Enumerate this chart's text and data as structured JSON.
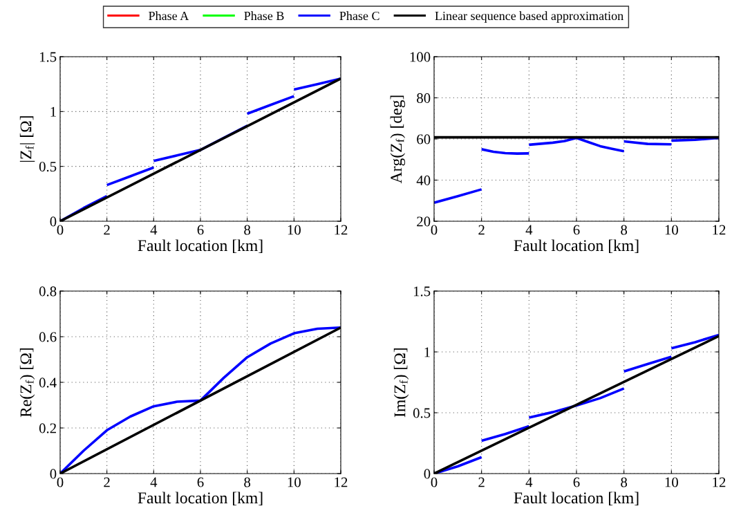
{
  "chart_data": [
    {
      "type": "line",
      "xlabel": "Fault location [km]",
      "ylabel": "|Z$_{f}$| [Ω]",
      "xlim": [
        0,
        12
      ],
      "xticks": [
        0,
        2,
        4,
        6,
        8,
        10,
        12
      ],
      "ylim": [
        0,
        1.5
      ],
      "yticks": [
        0,
        0.5,
        1,
        1.5
      ],
      "grid": true,
      "legend": "top",
      "line_style": "solid",
      "marker": "none",
      "series": [
        {
          "name": "Phase A",
          "color": "#ff0000"
        },
        {
          "name": "Phase B",
          "color": "#00ff00"
        },
        {
          "name": "Phase C",
          "color": "#0000ff",
          "x": [
            0,
            1,
            2
          ],
          "values": [
            0,
            0.12,
            0.23
          ]
        },
        {
          "color": "#0000ff",
          "x": [
            2,
            3,
            4
          ],
          "values": [
            0.33,
            0.41,
            0.49
          ]
        },
        {
          "color": "#0000ff",
          "x": [
            4,
            5,
            6,
            7,
            8
          ],
          "values": [
            0.55,
            0.6,
            0.65,
            0.76,
            0.87
          ]
        },
        {
          "color": "#0000ff",
          "x": [
            8,
            9,
            10
          ],
          "values": [
            0.98,
            1.06,
            1.14
          ]
        },
        {
          "color": "#0000ff",
          "x": [
            10,
            11,
            12
          ],
          "values": [
            1.2,
            1.25,
            1.3
          ]
        },
        {
          "name": "Linear sequence based approximation",
          "color": "#000000",
          "x": [
            0,
            12
          ],
          "values": [
            0,
            1.3
          ]
        }
      ]
    },
    {
      "type": "line",
      "xlabel": "Fault location [km]",
      "ylabel": "Arg(Z$_{f}$) [deg]",
      "xlim": [
        0,
        12
      ],
      "xticks": [
        0,
        2,
        4,
        6,
        8,
        10,
        12
      ],
      "ylim": [
        20,
        100
      ],
      "yticks": [
        20,
        40,
        60,
        80,
        100
      ],
      "grid": true,
      "line_style": "solid",
      "marker": "none",
      "series": [
        {
          "color": "#0000ff",
          "x": [
            0,
            1,
            2
          ],
          "values": [
            29,
            32.2,
            35.5
          ]
        },
        {
          "color": "#0000ff",
          "x": [
            2,
            2.5,
            3,
            3.5,
            4
          ],
          "values": [
            55,
            53.8,
            53.1,
            52.9,
            53
          ]
        },
        {
          "color": "#0000ff",
          "x": [
            4,
            5,
            5.5,
            6,
            6.5,
            7,
            7.5,
            8
          ],
          "values": [
            57.2,
            58.2,
            59,
            60.5,
            58.5,
            56.5,
            55.2,
            54
          ]
        },
        {
          "color": "#0000ff",
          "x": [
            8,
            9,
            10
          ],
          "values": [
            58.8,
            57.6,
            57.4
          ]
        },
        {
          "color": "#0000ff",
          "x": [
            10,
            11,
            12
          ],
          "values": [
            59.2,
            59.6,
            60.5
          ]
        },
        {
          "color": "#000000",
          "x": [
            0,
            12
          ],
          "values": [
            60.8,
            60.8
          ]
        }
      ]
    },
    {
      "type": "line",
      "xlabel": "Fault location [km]",
      "ylabel": "Re(Z$_{f}$) [Ω]",
      "xlim": [
        0,
        12
      ],
      "xticks": [
        0,
        2,
        4,
        6,
        8,
        10,
        12
      ],
      "ylim": [
        0,
        0.8
      ],
      "yticks": [
        0,
        0.2,
        0.4,
        0.6,
        0.8
      ],
      "grid": true,
      "line_style": "solid",
      "marker": "none",
      "series": [
        {
          "color": "#0000ff",
          "x": [
            0,
            1,
            2,
            3,
            4,
            5,
            6,
            7,
            8,
            9,
            10,
            11,
            12
          ],
          "values": [
            0,
            0.1,
            0.19,
            0.25,
            0.295,
            0.315,
            0.32,
            0.42,
            0.51,
            0.57,
            0.615,
            0.635,
            0.64
          ]
        },
        {
          "color": "#000000",
          "x": [
            0,
            12
          ],
          "values": [
            0,
            0.64
          ]
        }
      ]
    },
    {
      "type": "line",
      "xlabel": "Fault location [km]",
      "ylabel": "Im(Z$_{f}$) [Ω]",
      "xlim": [
        0,
        12
      ],
      "xticks": [
        0,
        2,
        4,
        6,
        8,
        10,
        12
      ],
      "ylim": [
        0,
        1.5
      ],
      "yticks": [
        0,
        0.5,
        1,
        1.5
      ],
      "grid": true,
      "line_style": "solid",
      "marker": "none",
      "series": [
        {
          "color": "#0000ff",
          "x": [
            0,
            1,
            2
          ],
          "values": [
            0,
            0.06,
            0.135
          ]
        },
        {
          "color": "#0000ff",
          "x": [
            2,
            3,
            4
          ],
          "values": [
            0.27,
            0.325,
            0.39
          ]
        },
        {
          "color": "#0000ff",
          "x": [
            4,
            5,
            6,
            7,
            8
          ],
          "values": [
            0.46,
            0.505,
            0.56,
            0.62,
            0.7
          ]
        },
        {
          "color": "#0000ff",
          "x": [
            8,
            9,
            10
          ],
          "values": [
            0.84,
            0.9,
            0.96
          ]
        },
        {
          "color": "#0000ff",
          "x": [
            10,
            11,
            12
          ],
          "values": [
            1.03,
            1.08,
            1.14
          ]
        },
        {
          "color": "#000000",
          "x": [
            0,
            12
          ],
          "values": [
            0,
            1.13
          ]
        }
      ]
    }
  ]
}
